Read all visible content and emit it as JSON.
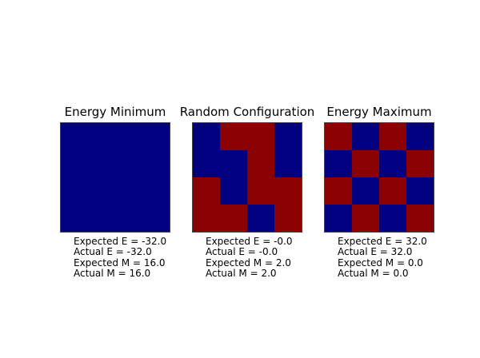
{
  "colors": {
    "spin_blue": "#000080",
    "spin_red": "#8B0000",
    "grid_border": "#444444",
    "background": "#ffffff",
    "text": "#000000"
  },
  "panels": [
    {
      "title": "Energy Minimum",
      "grid": [
        "BBBB",
        "BBBB",
        "BBBB",
        "BBBB"
      ],
      "stats": [
        "Expected E = -32.0",
        "Actual E = -32.0",
        "Expected M = 16.0",
        "Actual M = 16.0"
      ]
    },
    {
      "title": "Random Configuration",
      "grid": [
        "BRRB",
        "BBRB",
        "RBRR",
        "RRBR"
      ],
      "stats": [
        "Expected E = -0.0",
        "Actual E = -0.0",
        "Expected M = 2.0",
        "Actual M = 2.0"
      ]
    },
    {
      "title": "Energy Maximum",
      "grid": [
        "RBRB",
        "BRBR",
        "RBRB",
        "BRBR"
      ],
      "stats": [
        "Expected E = 32.0",
        "Actual E = 32.0",
        "Expected M = 0.0",
        "Actual M = 0.0"
      ]
    }
  ],
  "chart_data": [
    {
      "type": "heatmap",
      "title": "Energy Minimum",
      "rows": 4,
      "cols": 4,
      "cell_colors": [
        "BBBB",
        "BBBB",
        "BBBB",
        "BBBB"
      ],
      "color_map": {
        "B": "#000080",
        "R": "#8B0000"
      },
      "annotations": [
        "Expected E = -32.0",
        "Actual E = -32.0",
        "Expected M = 16.0",
        "Actual M = 16.0"
      ]
    },
    {
      "type": "heatmap",
      "title": "Random Configuration",
      "rows": 4,
      "cols": 4,
      "cell_colors": [
        "BRRB",
        "BBRB",
        "RBRR",
        "RRBR"
      ],
      "color_map": {
        "B": "#000080",
        "R": "#8B0000"
      },
      "annotations": [
        "Expected E = -0.0",
        "Actual E = -0.0",
        "Expected M = 2.0",
        "Actual M = 2.0"
      ]
    },
    {
      "type": "heatmap",
      "title": "Energy Maximum",
      "rows": 4,
      "cols": 4,
      "cell_colors": [
        "RBRB",
        "BRBR",
        "RBRB",
        "BRBR"
      ],
      "color_map": {
        "B": "#000080",
        "R": "#8B0000"
      },
      "annotations": [
        "Expected E = 32.0",
        "Actual E = 32.0",
        "Expected M = 0.0",
        "Actual M = 0.0"
      ]
    }
  ]
}
